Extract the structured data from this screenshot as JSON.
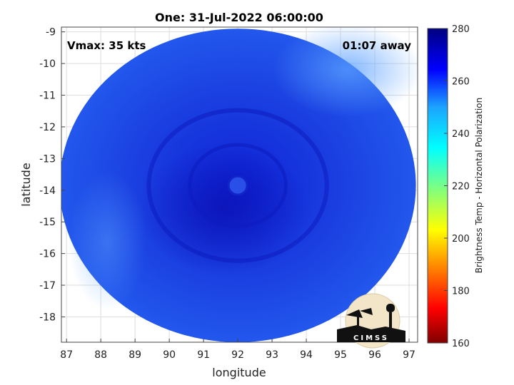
{
  "chart_data": {
    "type": "heatmap",
    "title": "One: 31-Jul-2022 06:00:00",
    "xlabel": "longitude",
    "ylabel": "latitude",
    "xlim": [
      86.85,
      97.25
    ],
    "ylim": [
      -18.8,
      -8.85
    ],
    "x_ticks": [
      87,
      88,
      89,
      90,
      91,
      92,
      93,
      94,
      95,
      96,
      97
    ],
    "y_ticks": [
      -9,
      -10,
      -11,
      -12,
      -13,
      -14,
      -15,
      -16,
      -17,
      -18
    ],
    "grid": true,
    "swath": {
      "center_lon": 92.0,
      "center_lat": -13.85,
      "radius_lon": 5.2,
      "radius_lat": 4.95
    },
    "storm_center": {
      "lon": 92.0,
      "lat": -13.85
    },
    "colorbar": {
      "label": "Brightness Temp - Horizontal Polarization",
      "range": [
        160,
        280
      ],
      "ticks": [
        160,
        180,
        200,
        220,
        240,
        260,
        280
      ],
      "colormap": "jet"
    },
    "annotations": {
      "vmax": "Vmax: 35 kts",
      "time_offset": "01:07 away"
    }
  },
  "logo": {
    "text": "CIMSS"
  }
}
